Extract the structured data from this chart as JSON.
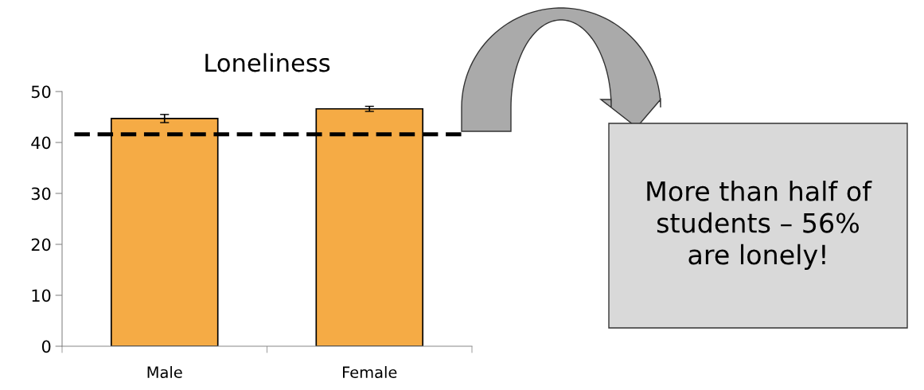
{
  "chart_data": {
    "type": "bar",
    "title": "Loneliness",
    "categories": [
      "Male",
      "Female"
    ],
    "values": [
      44.7,
      46.6
    ],
    "errors": [
      0.8,
      0.5
    ],
    "color": "#f5ab45",
    "ylim": [
      0,
      50
    ],
    "yticks": [
      0,
      10,
      20,
      30,
      40,
      50
    ],
    "ref_lines": [
      {
        "axis": "y",
        "value": 41.6,
        "color": "#000000",
        "line_style": "dashed"
      }
    ],
    "annotations": [
      "More than half of\nstudents – 56%\nare lonely!"
    ],
    "grid": false,
    "legend": false
  }
}
